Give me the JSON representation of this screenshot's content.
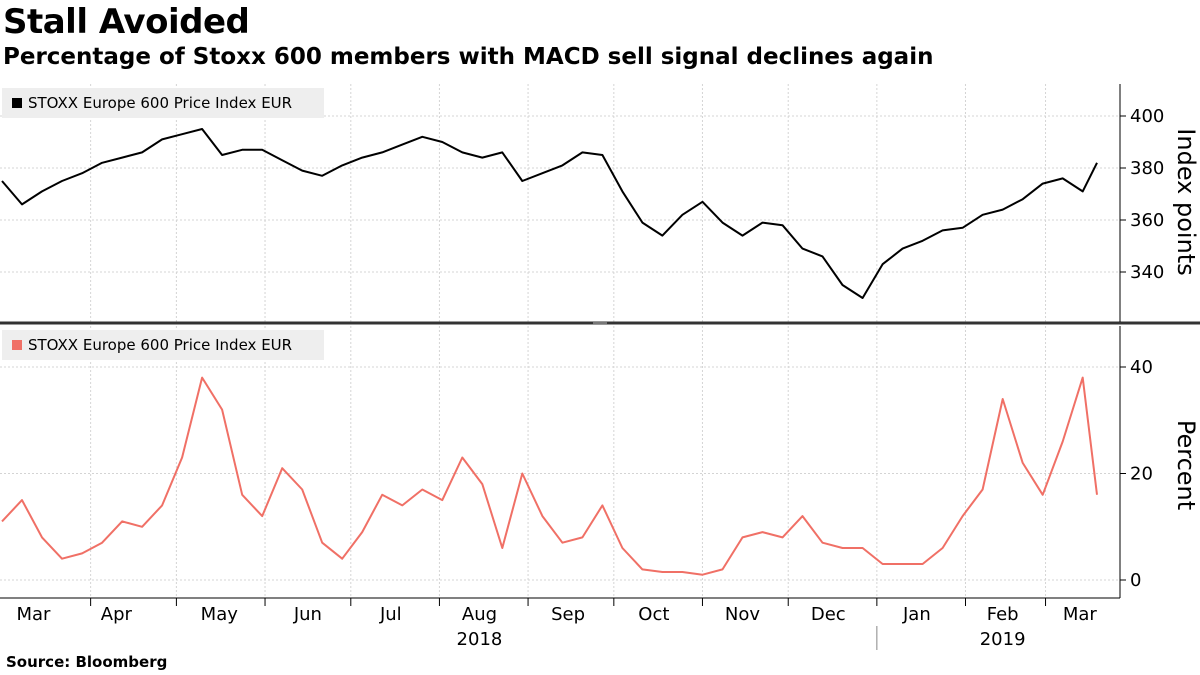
{
  "chart_data": [
    {
      "type": "line",
      "title": "Stall Avoided",
      "subtitle": "Percentage of Stoxx 600 members with MACD sell signal declines again",
      "source": "Source: Bloomberg",
      "series": [
        {
          "name": "STOXX Europe 600 Price Index EUR",
          "color": "#000000",
          "x": [
            "2018-03-01",
            "2018-03-08",
            "2018-03-15",
            "2018-03-22",
            "2018-03-29",
            "2018-04-05",
            "2018-04-12",
            "2018-04-19",
            "2018-04-26",
            "2018-05-03",
            "2018-05-10",
            "2018-05-17",
            "2018-05-24",
            "2018-05-31",
            "2018-06-07",
            "2018-06-14",
            "2018-06-21",
            "2018-06-28",
            "2018-07-05",
            "2018-07-12",
            "2018-07-19",
            "2018-07-26",
            "2018-08-02",
            "2018-08-09",
            "2018-08-16",
            "2018-08-23",
            "2018-08-30",
            "2018-09-06",
            "2018-09-13",
            "2018-09-20",
            "2018-09-27",
            "2018-10-04",
            "2018-10-11",
            "2018-10-18",
            "2018-10-25",
            "2018-11-01",
            "2018-11-08",
            "2018-11-15",
            "2018-11-22",
            "2018-11-29",
            "2018-12-06",
            "2018-12-13",
            "2018-12-20",
            "2018-12-27",
            "2019-01-03",
            "2019-01-10",
            "2019-01-17",
            "2019-01-24",
            "2019-01-31",
            "2019-02-07",
            "2019-02-14",
            "2019-02-21",
            "2019-02-28",
            "2019-03-07",
            "2019-03-14",
            "2019-03-19"
          ],
          "y": [
            375,
            366,
            371,
            375,
            378,
            382,
            384,
            386,
            391,
            393,
            395,
            385,
            387,
            387,
            383,
            379,
            377,
            381,
            384,
            386,
            389,
            392,
            390,
            386,
            384,
            386,
            375,
            378,
            381,
            386,
            385,
            371,
            359,
            354,
            362,
            367,
            359,
            354,
            359,
            358,
            349,
            346,
            335,
            330,
            343,
            349,
            352,
            356,
            357,
            362,
            364,
            368,
            374,
            376,
            371,
            382
          ]
        },
        {
          "name": "STOXX Europe 600 Price Index EUR",
          "color": "#f07066",
          "x": [
            "2018-03-01",
            "2018-03-08",
            "2018-03-15",
            "2018-03-22",
            "2018-03-29",
            "2018-04-05",
            "2018-04-12",
            "2018-04-19",
            "2018-04-26",
            "2018-05-03",
            "2018-05-10",
            "2018-05-17",
            "2018-05-24",
            "2018-05-31",
            "2018-06-07",
            "2018-06-14",
            "2018-06-21",
            "2018-06-28",
            "2018-07-05",
            "2018-07-12",
            "2018-07-19",
            "2018-07-26",
            "2018-08-02",
            "2018-08-09",
            "2018-08-16",
            "2018-08-23",
            "2018-08-30",
            "2018-09-06",
            "2018-09-13",
            "2018-09-20",
            "2018-09-27",
            "2018-10-04",
            "2018-10-11",
            "2018-10-18",
            "2018-10-25",
            "2018-11-01",
            "2018-11-08",
            "2018-11-15",
            "2018-11-22",
            "2018-11-29",
            "2018-12-06",
            "2018-12-13",
            "2018-12-20",
            "2018-12-27",
            "2019-01-03",
            "2019-01-10",
            "2019-01-17",
            "2019-01-24",
            "2019-01-31",
            "2019-02-07",
            "2019-02-14",
            "2019-02-21",
            "2019-02-28",
            "2019-03-07",
            "2019-03-14",
            "2019-03-19"
          ],
          "y": [
            11,
            15,
            8,
            4,
            5,
            7,
            11,
            10,
            14,
            23,
            38,
            32,
            16,
            12,
            21,
            17,
            7,
            4,
            9,
            16,
            14,
            17,
            15,
            23,
            18,
            6,
            20,
            12,
            7,
            8,
            14,
            6,
            2,
            1.5,
            1.5,
            1,
            2,
            8,
            9,
            8,
            12,
            7,
            6,
            6,
            3,
            3,
            3,
            6,
            12,
            17,
            34,
            22,
            16,
            26,
            38,
            16
          ]
        }
      ],
      "panels": [
        {
          "ylabel": "Index points",
          "yticks": [
            340,
            360,
            380,
            400
          ],
          "ylim": [
            322,
            413
          ]
        },
        {
          "ylabel": "Percent",
          "yticks": [
            0,
            20,
            40
          ],
          "ylim": [
            -4,
            47
          ]
        }
      ],
      "xaxis": {
        "months": [
          "Mar",
          "Apr",
          "May",
          "Jun",
          "Jul",
          "Aug",
          "Sep",
          "Oct",
          "Nov",
          "Dec",
          "Jan",
          "Feb",
          "Mar"
        ],
        "month_dates": [
          "2018-03-12",
          "2018-04-10",
          "2018-05-16",
          "2018-06-16",
          "2018-07-15",
          "2018-08-15",
          "2018-09-15",
          "2018-10-15",
          "2018-11-15",
          "2018-12-15",
          "2019-01-15",
          "2019-02-14",
          "2019-03-13"
        ],
        "years": [
          "2018",
          "2019"
        ],
        "year_dates": [
          "2018-08-15",
          "2019-02-14"
        ]
      },
      "grid": true,
      "legend": "top-left"
    }
  ],
  "labels": {
    "title": "Stall Avoided",
    "subtitle": "Percentage of Stoxx 600 members with MACD sell signal declines again",
    "source": "Source: Bloomberg"
  }
}
